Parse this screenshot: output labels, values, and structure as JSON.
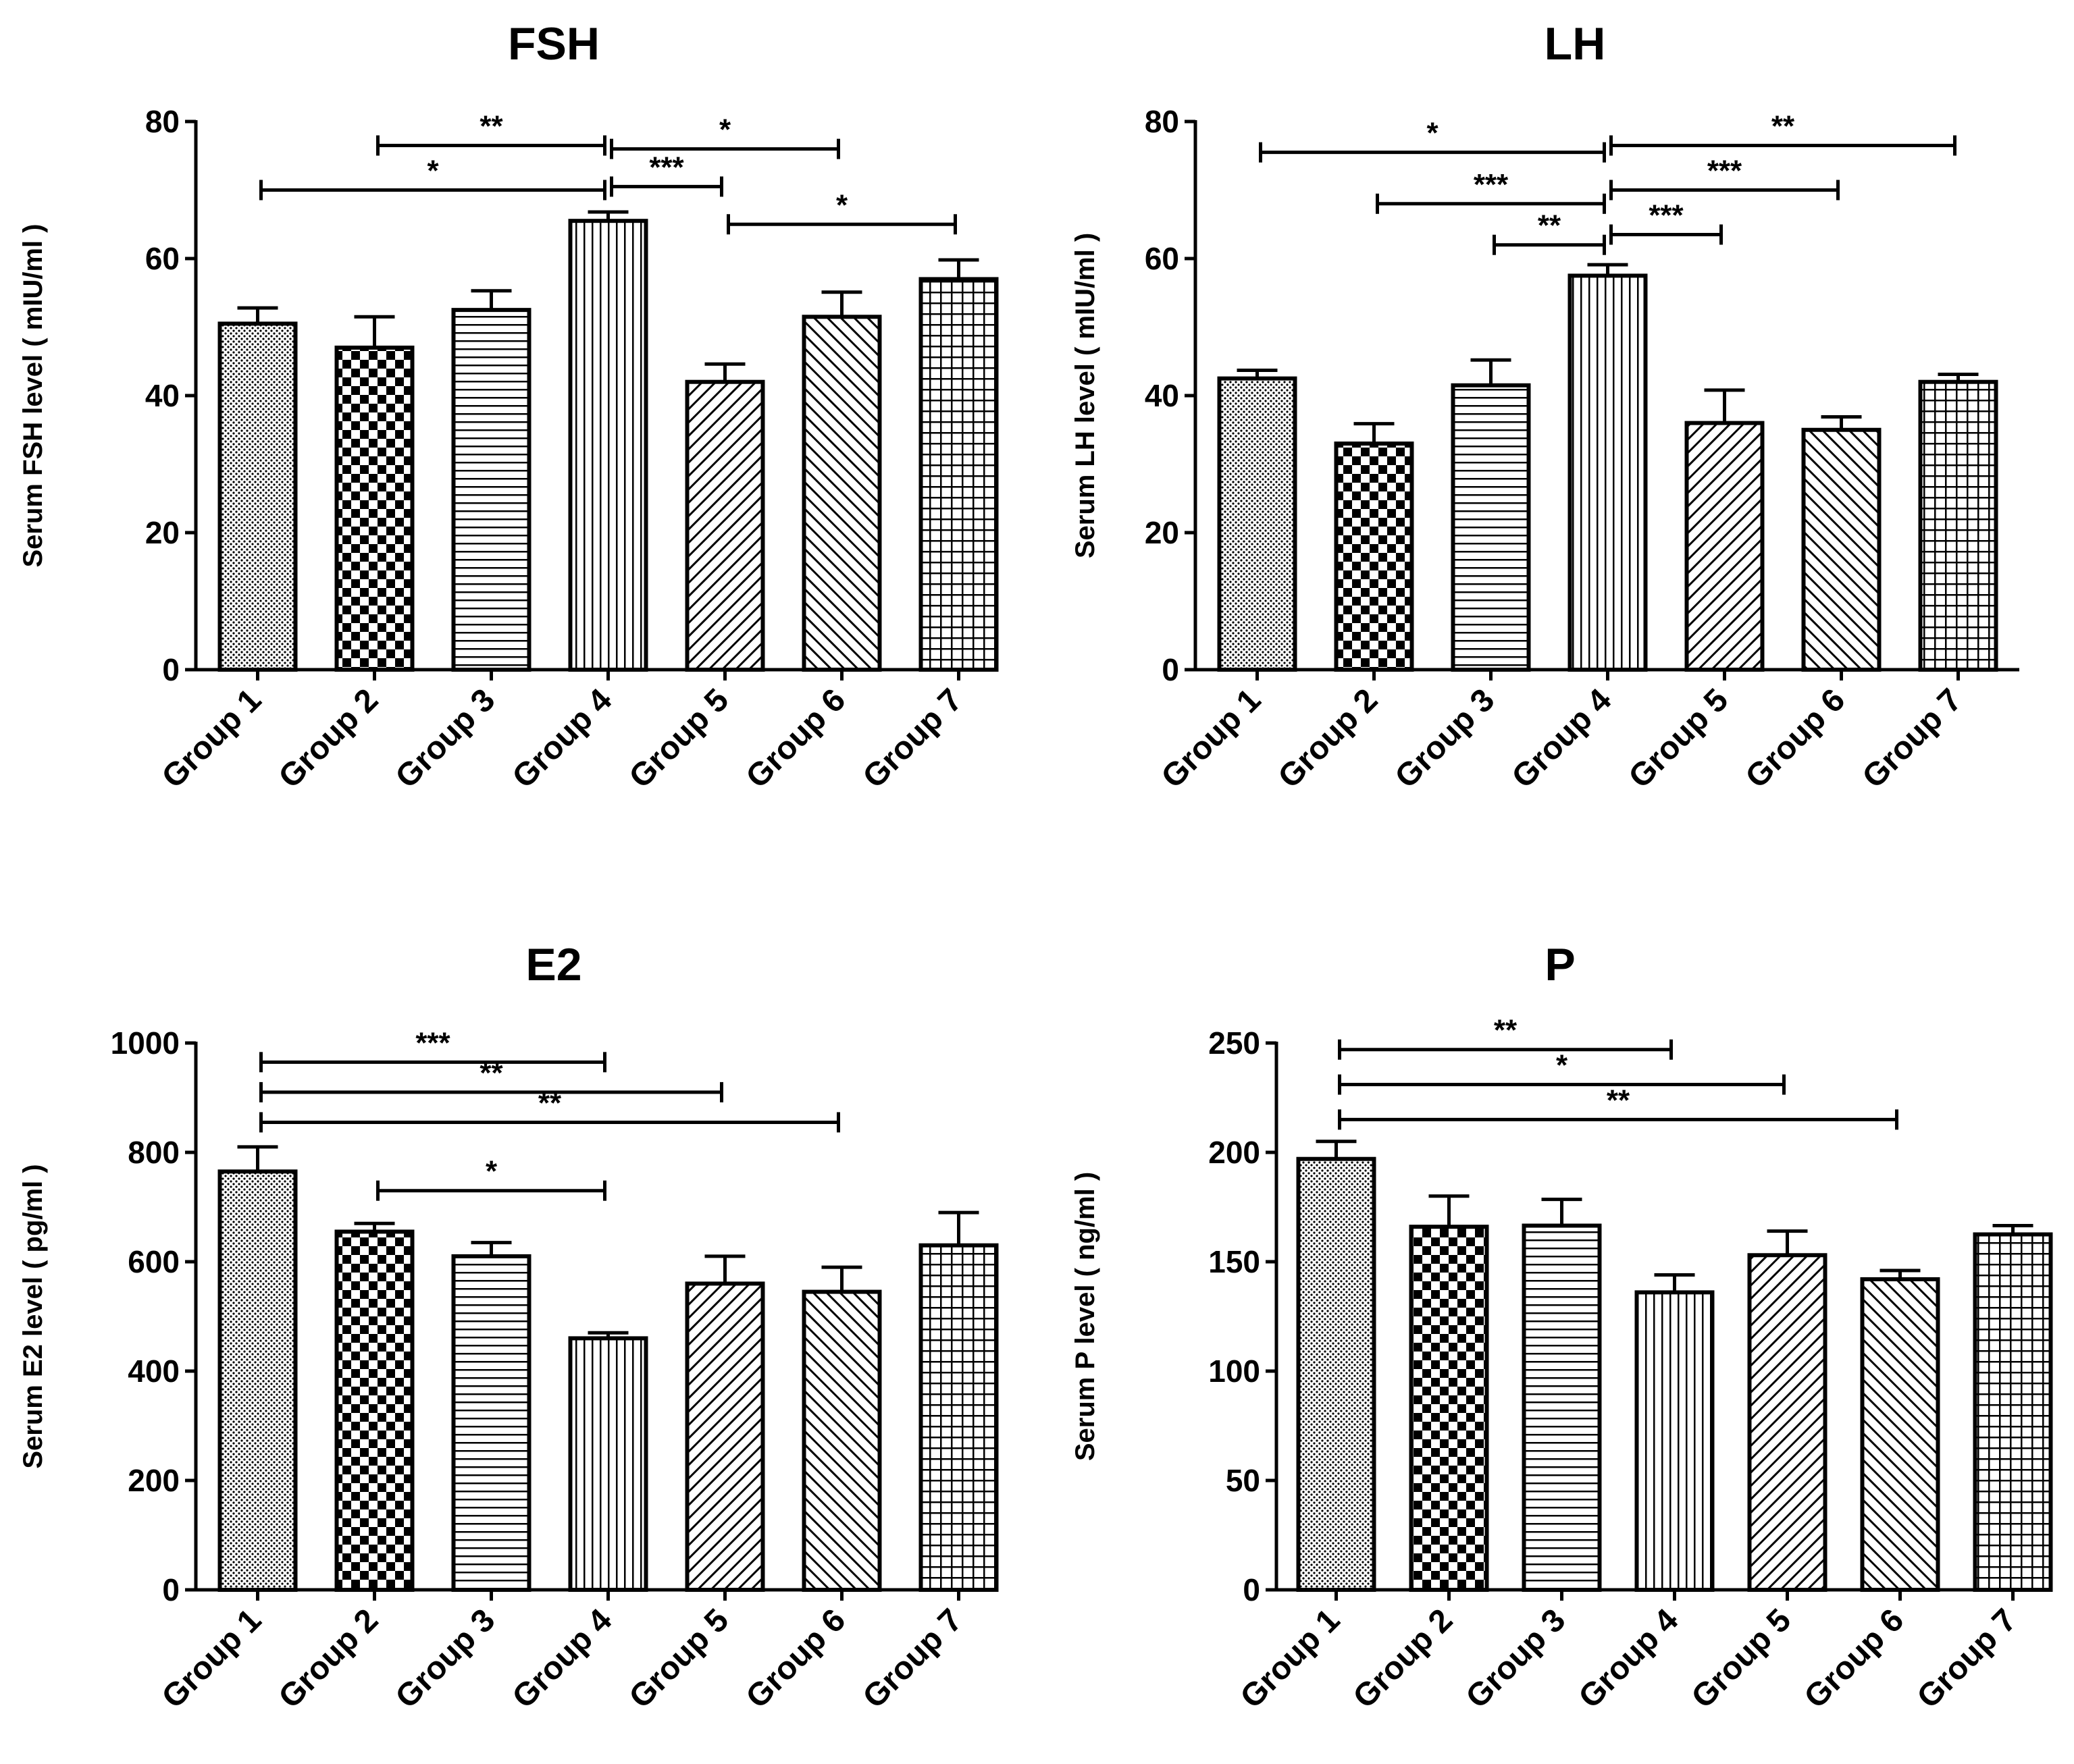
{
  "figure": {
    "colors": {
      "ink": "#000000",
      "background": "#ffffff"
    },
    "patterns": [
      "pattern-dots",
      "pattern-checker",
      "pattern-hlines",
      "pattern-vlines",
      "pattern-diag-right",
      "pattern-diag-left",
      "pattern-grid"
    ]
  },
  "chart_data": [
    {
      "type": "bar",
      "title": "FSH",
      "ylabel": "Serum FSH level ( mIU/ml )",
      "xlabel": "",
      "categories": [
        "Group 1",
        "Group 2",
        "Group 3",
        "Group 4",
        "Group 5",
        "Group 6",
        "Group 7"
      ],
      "values": [
        50.5,
        47,
        52.5,
        65.5,
        42,
        51.5,
        57
      ],
      "errors": [
        2.3,
        4.5,
        2.8,
        1.3,
        2.6,
        3.6,
        2.8
      ],
      "ylim": [
        0,
        80
      ],
      "yticks": [
        0,
        20,
        40,
        60,
        80
      ],
      "significance": [
        {
          "from": "Group 2",
          "to": "Group 4",
          "label": "**",
          "y": 76.5
        },
        {
          "from": "Group 4",
          "to": "Group 6",
          "label": "*",
          "y": 76
        },
        {
          "from": "Group 1",
          "to": "Group 4",
          "label": "*",
          "y": 70
        },
        {
          "from": "Group 4",
          "to": "Group 5",
          "label": "***",
          "y": 70.5
        },
        {
          "from": "Group 5",
          "to": "Group 7",
          "label": "*",
          "y": 65
        }
      ]
    },
    {
      "type": "bar",
      "title": "LH",
      "ylabel": "Serum LH level ( mIU/ml )",
      "xlabel": "",
      "categories": [
        "Group 1",
        "Group 2",
        "Group 3",
        "Group 4",
        "Group 5",
        "Group 6",
        "Group 7"
      ],
      "values": [
        42.5,
        33,
        41.5,
        57.5,
        36,
        35,
        42
      ],
      "errors": [
        1.2,
        2.9,
        3.7,
        1.6,
        4.8,
        1.9,
        1.1
      ],
      "ylim": [
        0,
        80
      ],
      "yticks": [
        0,
        20,
        40,
        60,
        80
      ],
      "significance": [
        {
          "from": "Group 1",
          "to": "Group 4",
          "label": "*",
          "y": 75.5
        },
        {
          "from": "Group 4",
          "to": "Group 7",
          "label": "**",
          "y": 76.5
        },
        {
          "from": "Group 2",
          "to": "Group 4",
          "label": "***",
          "y": 68
        },
        {
          "from": "Group 4",
          "to": "Group 6",
          "label": "***",
          "y": 70
        },
        {
          "from": "Group 3",
          "to": "Group 4",
          "label": "**",
          "y": 62
        },
        {
          "from": "Group 4",
          "to": "Group 5",
          "label": "***",
          "y": 63.5
        }
      ]
    },
    {
      "type": "bar",
      "title": "E2",
      "ylabel": "Serum E2 level ( pg/ml )",
      "xlabel": "",
      "categories": [
        "Group 1",
        "Group 2",
        "Group 3",
        "Group 4",
        "Group 5",
        "Group 6",
        "Group 7"
      ],
      "values": [
        765,
        655,
        610,
        460,
        560,
        545,
        630
      ],
      "errors": [
        45,
        15,
        25,
        10,
        50,
        45,
        60
      ],
      "ylim": [
        0,
        1000
      ],
      "yticks": [
        0,
        200,
        400,
        600,
        800,
        1000
      ],
      "significance": [
        {
          "from": "Group 1",
          "to": "Group 4",
          "label": "***",
          "y": 965
        },
        {
          "from": "Group 1",
          "to": "Group 5",
          "label": "**",
          "y": 910
        },
        {
          "from": "Group 1",
          "to": "Group 6",
          "label": "**",
          "y": 855
        },
        {
          "from": "Group 2",
          "to": "Group 4",
          "label": "*",
          "y": 730
        }
      ]
    },
    {
      "type": "bar",
      "title": "P",
      "ylabel": "Serum P level ( ng/ml )",
      "xlabel": "",
      "categories": [
        "Group 1",
        "Group 2",
        "Group 3",
        "Group 4",
        "Group 5",
        "Group 6",
        "Group 7"
      ],
      "values": [
        197,
        166,
        166.5,
        136,
        153,
        142,
        162.5
      ],
      "errors": [
        8,
        14,
        12,
        8,
        11,
        4,
        4
      ],
      "ylim": [
        0,
        250
      ],
      "yticks": [
        0,
        50,
        100,
        150,
        200,
        250
      ],
      "significance": [
        {
          "from": "Group 1",
          "to": "Group 4",
          "label": "**",
          "y": 247
        },
        {
          "from": "Group 1",
          "to": "Group 5",
          "label": "*",
          "y": 231
        },
        {
          "from": "Group 1",
          "to": "Group 6",
          "label": "**",
          "y": 215
        }
      ]
    }
  ]
}
